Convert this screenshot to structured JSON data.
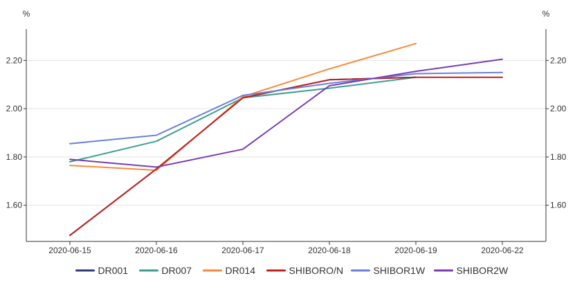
{
  "chart_data": {
    "type": "line",
    "x": [
      "2020-06-15",
      "2020-06-16",
      "2020-06-17",
      "2020-06-18",
      "2020-06-19",
      "2020-06-22"
    ],
    "ylim": [
      1.45,
      2.33
    ],
    "yticks": [
      1.6,
      1.8,
      2.0,
      2.2
    ],
    "ytick_labels": [
      "1.60",
      "1.80",
      "2.00",
      "2.20"
    ],
    "y_unit_left": "%",
    "y_unit_right": "%",
    "grid": "horizontal",
    "legend_position": "bottom",
    "series": [
      {
        "name": "DR001",
        "color": "#2e3a78",
        "values": [
          1.475,
          1.75,
          2.045,
          2.12,
          2.13,
          null
        ]
      },
      {
        "name": "DR007",
        "color": "#3a9e8f",
        "values": [
          1.78,
          1.865,
          2.045,
          2.085,
          2.13,
          null
        ]
      },
      {
        "name": "DR014",
        "color": "#f58b3a",
        "values": [
          1.765,
          1.745,
          2.05,
          2.165,
          2.27,
          null
        ]
      },
      {
        "name": "SHIBORO/N",
        "color": "#c0211f",
        "values": [
          1.475,
          1.75,
          2.045,
          2.12,
          2.13,
          2.13
        ]
      },
      {
        "name": "SHIBOR1W",
        "color": "#6a7fdc",
        "values": [
          1.855,
          1.89,
          2.055,
          2.105,
          2.145,
          2.15
        ]
      },
      {
        "name": "SHIBOR2W",
        "color": "#7b3bb0",
        "values": [
          1.79,
          1.758,
          1.832,
          2.095,
          2.155,
          2.205
        ]
      }
    ]
  }
}
